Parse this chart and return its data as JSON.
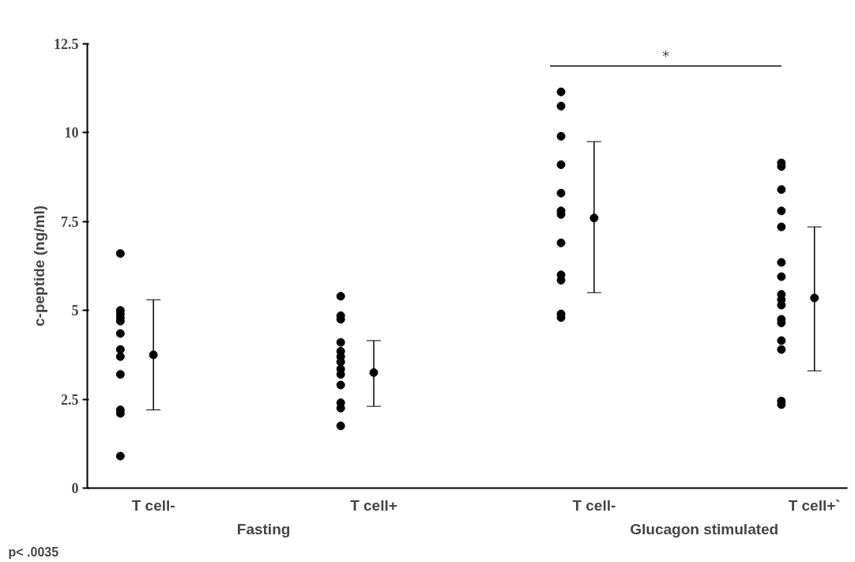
{
  "chart_data": {
    "type": "scatter",
    "ylabel": "c-peptide (ng/ml)",
    "categories": [
      "T cell-",
      "T cell+",
      "T cell-",
      "T cell+`"
    ],
    "series": [
      {
        "type": "scatter",
        "color": "#000000",
        "values": [
          6.6,
          5.4,
          11.15,
          9.15
        ]
      },
      {
        "type": "scatter",
        "color": "#000000",
        "values": [
          5.0,
          4.85,
          10.75,
          9.05
        ]
      },
      {
        "type": "scatter",
        "color": "#000000",
        "values": [
          4.9,
          4.75,
          9.9,
          8.4
        ]
      },
      {
        "type": "scatter",
        "color": "#000000",
        "values": [
          4.8,
          4.1,
          9.1,
          7.8
        ]
      },
      {
        "type": "scatter",
        "color": "#000000",
        "values": [
          4.7,
          3.85,
          8.3,
          7.35
        ]
      },
      {
        "type": "scatter",
        "color": "#000000",
        "values": [
          4.35,
          3.7,
          7.8,
          6.35
        ]
      },
      {
        "type": "scatter",
        "color": "#000000",
        "values": [
          3.9,
          3.55,
          7.7,
          5.95
        ]
      },
      {
        "type": "scatter",
        "color": "#000000",
        "values": [
          3.7,
          3.35,
          6.9,
          5.45
        ]
      },
      {
        "type": "scatter",
        "color": "#000000",
        "values": [
          3.2,
          3.2,
          6.0,
          5.3
        ]
      },
      {
        "type": "scatter",
        "color": "#000000",
        "values": [
          2.2,
          2.9,
          5.85,
          5.15
        ]
      },
      {
        "type": "scatter",
        "color": "#000000",
        "values": [
          2.1,
          2.4,
          4.9,
          4.75
        ]
      },
      {
        "type": "scatter",
        "color": "#000000",
        "values": [
          0.9,
          2.25,
          4.8,
          4.65
        ]
      },
      {
        "type": "scatter",
        "color": "#000000",
        "values": [
          null,
          1.75,
          null,
          4.15
        ]
      },
      {
        "type": "scatter",
        "color": "#000000",
        "values": [
          null,
          null,
          null,
          3.9
        ]
      },
      {
        "type": "scatter",
        "color": "#000000",
        "values": [
          null,
          null,
          null,
          2.45
        ]
      },
      {
        "type": "scatter",
        "color": "#000000",
        "values": [
          null,
          null,
          null,
          2.35
        ]
      },
      {
        "color": "#000000",
        "values": [
          3.75,
          3.25,
          7.6,
          5.35
        ],
        "errors": [
          [
            2.2,
            5.3
          ],
          [
            2.3,
            4.15
          ],
          [
            5.5,
            9.75
          ],
          [
            3.3,
            7.35
          ]
        ]
      }
    ],
    "ylim": [
      0,
      12.5
    ],
    "yticks": [
      0,
      2.5,
      5,
      7.5,
      10,
      12.5
    ],
    "marker": "circle",
    "annotations": [
      "Fasting",
      "Glucagon stimulated",
      "*",
      "p< .0035"
    ]
  }
}
